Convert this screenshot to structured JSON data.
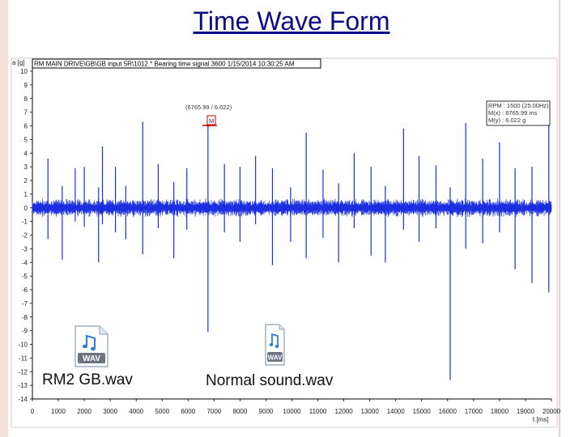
{
  "slide": {
    "title": "Time Wave Form"
  },
  "plot_header": "RM MAIN DRIVE\\GB\\GB input 5R\\1012 * Bearing time signal 3600 1/15/2014 10:30:25 AM",
  "chart_data": {
    "type": "line",
    "title": "",
    "xlabel": "t [ms]",
    "ylabel": "a [g]",
    "xlim": [
      0,
      20000
    ],
    "ylim": [
      -14,
      10
    ],
    "x_ticks": [
      0,
      1000,
      2000,
      3000,
      4000,
      5000,
      6000,
      7000,
      8000,
      9000,
      10000,
      11000,
      12000,
      13000,
      14000,
      15000,
      16000,
      17000,
      18000,
      19000,
      20000
    ],
    "y_ticks": [
      10,
      9,
      8,
      7,
      6,
      5,
      4,
      3,
      2,
      1,
      0,
      -1,
      -2,
      -3,
      -4,
      -5,
      -6,
      -7,
      -8,
      -9,
      -10,
      -11,
      -12,
      -13,
      -14
    ],
    "grid": false,
    "noise_band_g": 0.7,
    "impulses": [
      {
        "t": 600,
        "max": 3.6,
        "min": -2.3
      },
      {
        "t": 1150,
        "max": 1.6,
        "min": -3.8
      },
      {
        "t": 1650,
        "max": 2.9,
        "min": -1.0
      },
      {
        "t": 2000,
        "max": 3.0,
        "min": -1.4
      },
      {
        "t": 2550,
        "max": 1.5,
        "min": -4.0
      },
      {
        "t": 2700,
        "max": 4.5,
        "min": -1.2
      },
      {
        "t": 3200,
        "max": 3.0,
        "min": -1.8
      },
      {
        "t": 3600,
        "max": 1.6,
        "min": -2.3
      },
      {
        "t": 4250,
        "max": 6.3,
        "min": -3.4
      },
      {
        "t": 4850,
        "max": 3.2,
        "min": -1.5
      },
      {
        "t": 5450,
        "max": 1.9,
        "min": -3.7
      },
      {
        "t": 5950,
        "max": 2.9,
        "min": -1.6
      },
      {
        "t": 6766,
        "max": 6.0,
        "min": -9.1
      },
      {
        "t": 7400,
        "max": 3.2,
        "min": -1.8
      },
      {
        "t": 8000,
        "max": 3.0,
        "min": -2.5
      },
      {
        "t": 8600,
        "max": 3.8,
        "min": -1.2
      },
      {
        "t": 9250,
        "max": 2.9,
        "min": -4.2
      },
      {
        "t": 9950,
        "max": 1.5,
        "min": -2.5
      },
      {
        "t": 10550,
        "max": 5.5,
        "min": -3.7
      },
      {
        "t": 11200,
        "max": 2.8,
        "min": -2.2
      },
      {
        "t": 11800,
        "max": 1.8,
        "min": -4.0
      },
      {
        "t": 12400,
        "max": 4.0,
        "min": -1.5
      },
      {
        "t": 13050,
        "max": 3.0,
        "min": -3.5
      },
      {
        "t": 13600,
        "max": 1.6,
        "min": -4.0
      },
      {
        "t": 14300,
        "max": 5.8,
        "min": -1.6
      },
      {
        "t": 14900,
        "max": 3.8,
        "min": -2.5
      },
      {
        "t": 15550,
        "max": 3.1,
        "min": -1.5
      },
      {
        "t": 16100,
        "max": 1.5,
        "min": -12.6
      },
      {
        "t": 16700,
        "max": 6.2,
        "min": -3.0
      },
      {
        "t": 17350,
        "max": 3.6,
        "min": -2.6
      },
      {
        "t": 18000,
        "max": 4.8,
        "min": -1.8
      },
      {
        "t": 18600,
        "max": 2.9,
        "min": -4.5
      },
      {
        "t": 19250,
        "max": 3.0,
        "min": -5.5
      },
      {
        "t": 19900,
        "max": 6.2,
        "min": -6.2
      }
    ],
    "cursor": {
      "x": 6765.99,
      "y": 6.022,
      "marker_label": "M",
      "coord_label": "(6765.99 / 6.022)"
    },
    "readout": [
      "RPM : 1500 (25.00Hz)",
      "M(x) : 6765.99 ms",
      "M(y) : 6.022 g"
    ],
    "series_color": "#1a2fe0"
  },
  "attachments": [
    {
      "icon": "wav-file-icon",
      "badge": "WAV",
      "caption": "RM2 GB.wav"
    },
    {
      "icon": "wav-file-icon",
      "badge": "WAV",
      "caption": "Normal sound.wav"
    }
  ]
}
